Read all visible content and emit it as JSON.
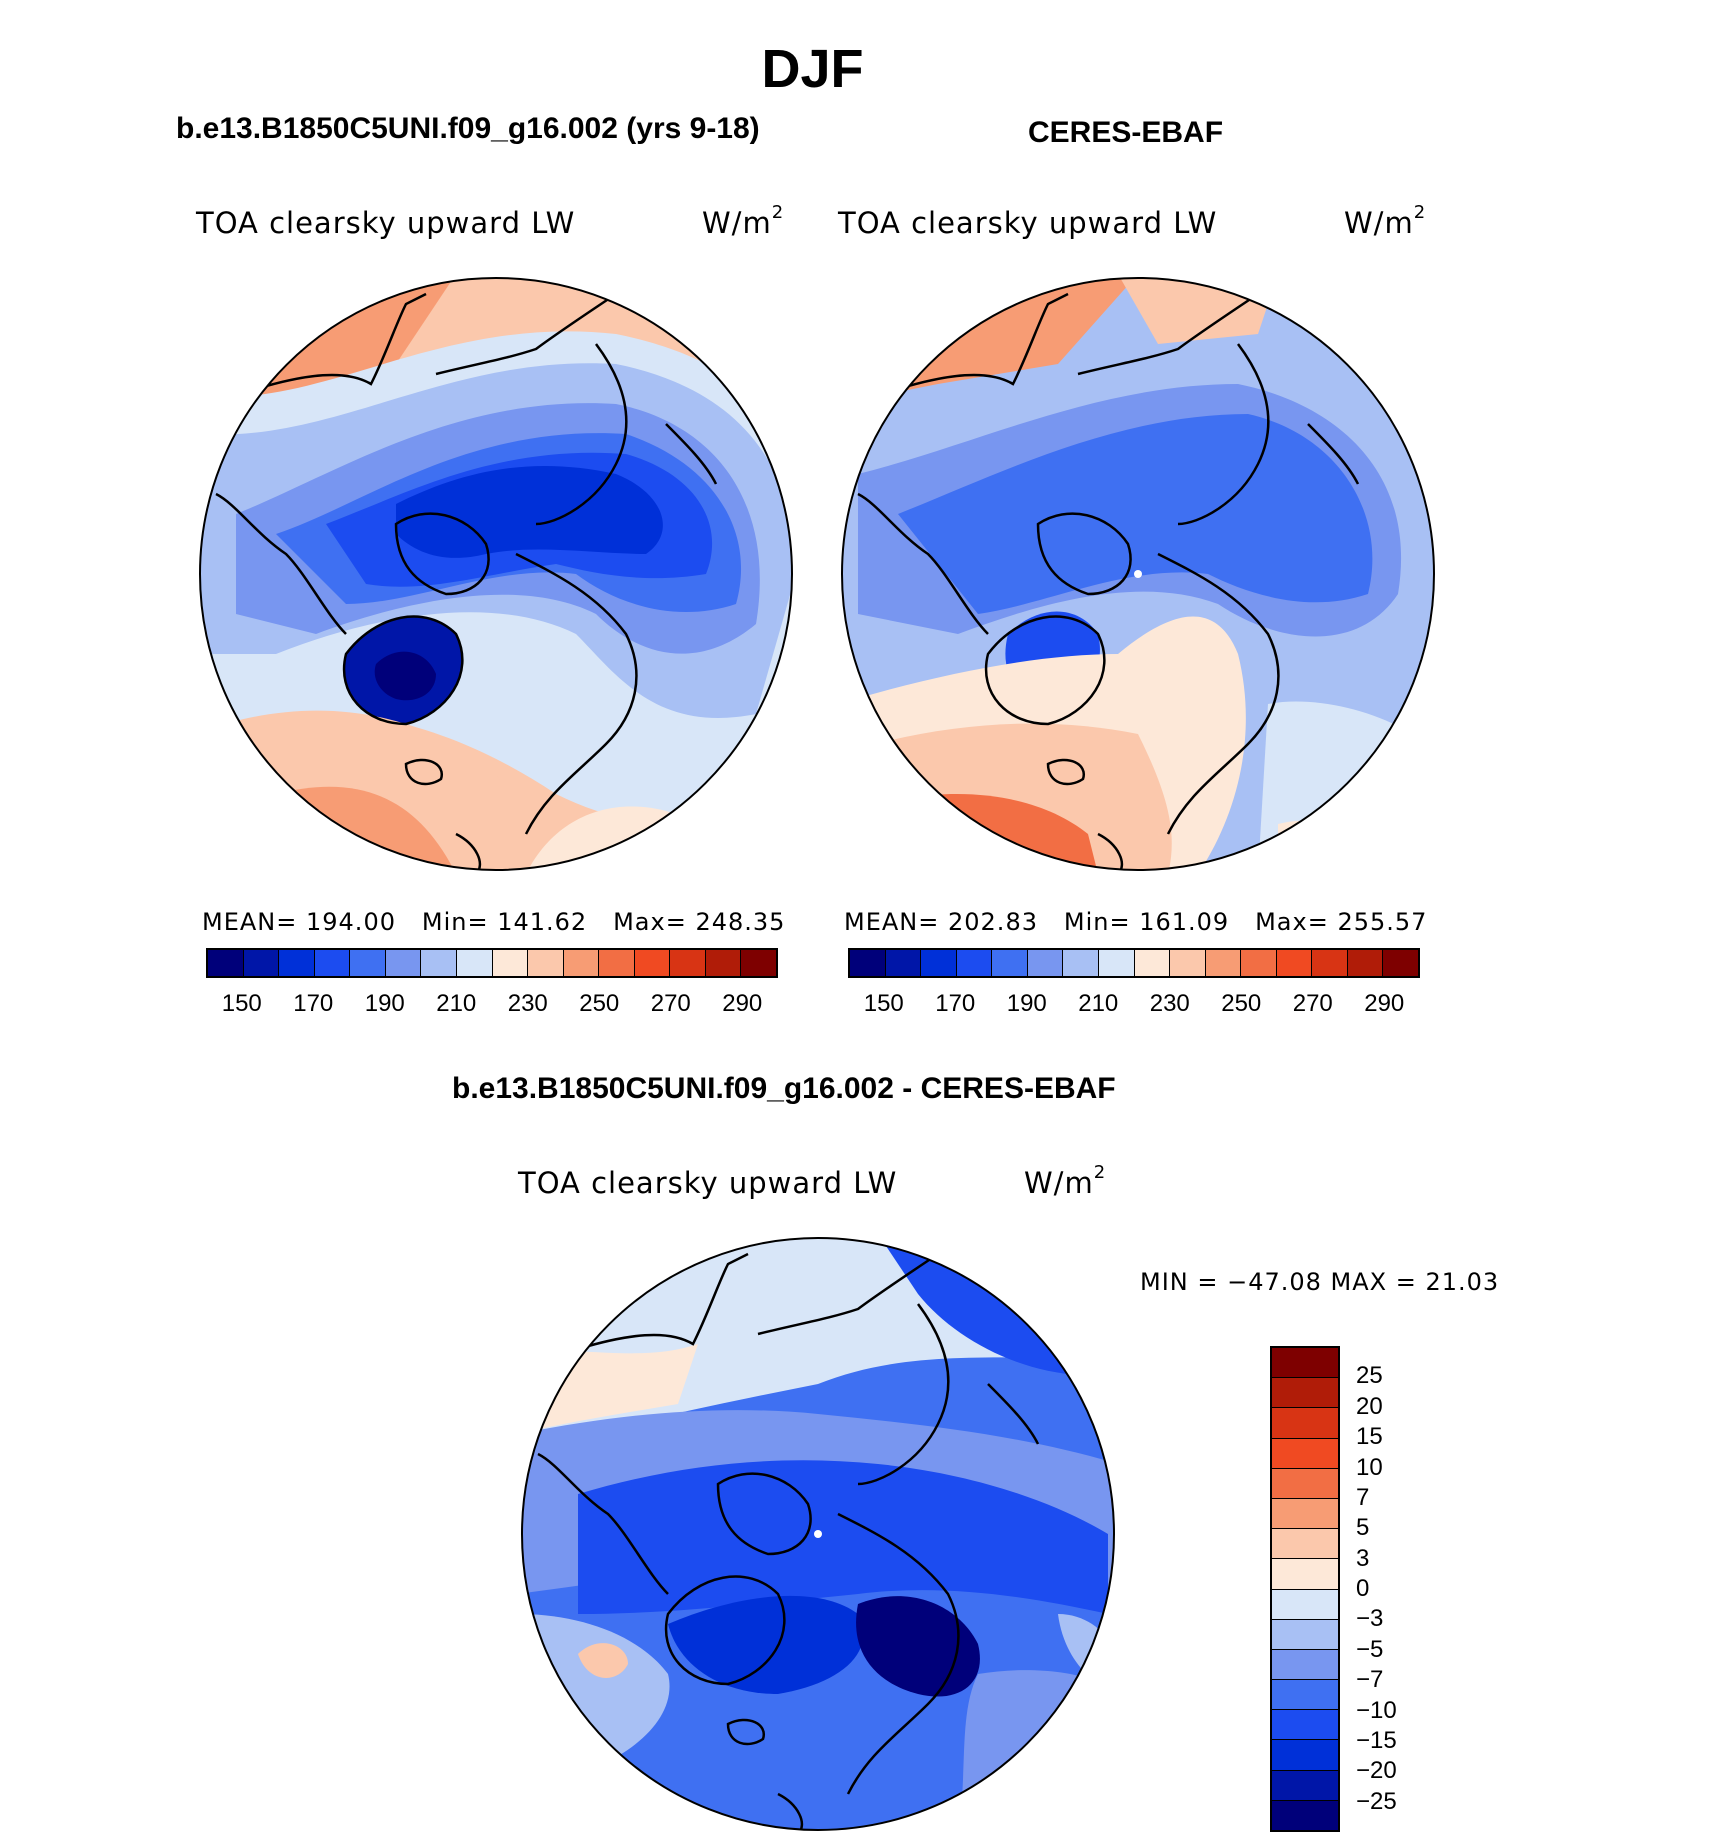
{
  "title": "DJF",
  "panels": [
    {
      "case": "b.e13.B1850C5UNI.f09_g16.002 (yrs 9-18)",
      "variable": "TOA clearsky upward LW",
      "units_base": "W/m",
      "units_exp": "2",
      "mean_label": "MEAN=",
      "mean": "194.00",
      "min_label": "Min=",
      "min": "141.62",
      "max_label": "Max=",
      "max": "248.35"
    },
    {
      "case": "CERES-EBAF",
      "variable": "TOA clearsky upward LW",
      "units_base": "W/m",
      "units_exp": "2",
      "mean_label": "MEAN=",
      "mean": "202.83",
      "min_label": "Min=",
      "min": "161.09",
      "max_label": "Max=",
      "max": "255.57"
    }
  ],
  "diff_panel": {
    "case": "b.e13.B1850C5UNI.f09_g16.002 - CERES-EBAF",
    "variable": "TOA clearsky upward LW",
    "units_base": "W/m",
    "units_exp": "2",
    "minmax": "MIN = −47.08 MAX =  21.03"
  },
  "colorbar_abs": {
    "tick_labels": [
      "150",
      "170",
      "190",
      "210",
      "230",
      "250",
      "270",
      "290"
    ],
    "colors": [
      "#00007a",
      "#0016a8",
      "#0030d8",
      "#1c4cf0",
      "#3f70f2",
      "#7896f0",
      "#a8c0f4",
      "#d8e6f8",
      "#fde8d8",
      "#fbc8ac",
      "#f79c74",
      "#f26e44",
      "#f04a22",
      "#d83414",
      "#b01c08",
      "#7e0000"
    ]
  },
  "colorbar_diff": {
    "tick_labels": [
      "25",
      "20",
      "15",
      "10",
      "7",
      "5",
      "3",
      "0",
      "−3",
      "−5",
      "−7",
      "−10",
      "−15",
      "−20",
      "−25"
    ],
    "colors": [
      "#7e0000",
      "#b01c08",
      "#d83414",
      "#f04a22",
      "#f26e44",
      "#f79c74",
      "#fbc8ac",
      "#fde8d8",
      "#d8e6f8",
      "#a8c0f4",
      "#7896f0",
      "#3f70f2",
      "#1c4cf0",
      "#0030d8",
      "#0016a8",
      "#00007a"
    ]
  },
  "map_colors": {
    "warm1": "#fde8d8",
    "warm2": "#fbc8ac",
    "warm3": "#f79c74",
    "warm4": "#f26e44",
    "cool1": "#d8e6f8",
    "cool2": "#a8c0f4",
    "cool3": "#7896f0",
    "cool4": "#3f70f2",
    "cool5": "#1c4cf0",
    "cool6": "#0030d8",
    "cool7": "#0016a8",
    "cool8": "#00007a"
  }
}
